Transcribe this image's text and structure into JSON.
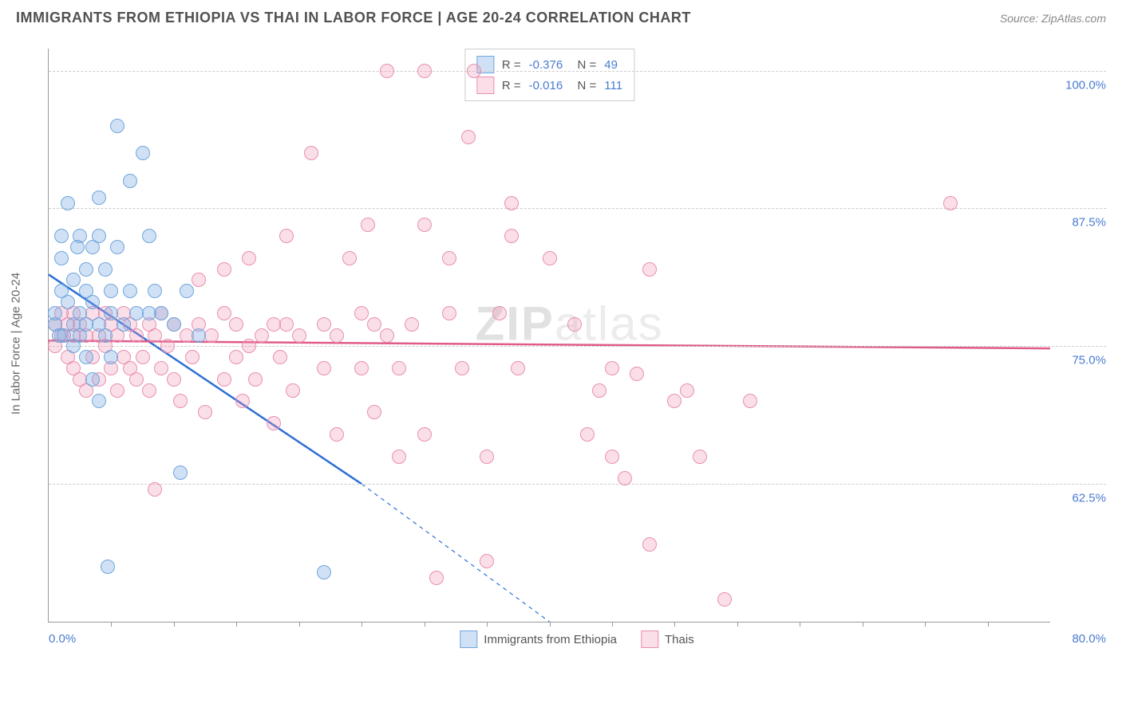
{
  "header": {
    "title": "IMMIGRANTS FROM ETHIOPIA VS THAI IN LABOR FORCE | AGE 20-24 CORRELATION CHART",
    "source": "Source: ZipAtlas.com"
  },
  "watermark": {
    "left": "ZIP",
    "right": "atlas"
  },
  "chart": {
    "type": "scatter",
    "ylabel": "In Labor Force | Age 20-24",
    "xlim": [
      0,
      80
    ],
    "ylim": [
      50,
      102
    ],
    "xticks": [
      0,
      80
    ],
    "xtick_labels": [
      "0.0%",
      "80.0%"
    ],
    "xtick_minor": [
      5,
      10,
      15,
      20,
      25,
      30,
      35,
      40,
      45,
      50,
      55,
      60,
      65,
      70,
      75
    ],
    "yticks": [
      62.5,
      75.0,
      87.5,
      100.0
    ],
    "ytick_labels": [
      "62.5%",
      "75.0%",
      "87.5%",
      "100.0%"
    ],
    "grid_color": "#cccccc",
    "background_color": "#ffffff",
    "axis_color": "#999999",
    "tick_label_color": "#4a7bd0",
    "label_fontsize": 15,
    "title_fontsize": 18,
    "marker_size": 18,
    "series": [
      {
        "name": "Immigrants from Ethiopia",
        "color_fill": "rgba(120,170,225,0.35)",
        "color_stroke": "#6fa6dd",
        "trend_color": "#2e6fd6",
        "trend_width": 2.5,
        "R": "-0.376",
        "N": "49",
        "trend": {
          "x1": 0,
          "y1": 81.5,
          "x2": 25,
          "y2": 62.5,
          "extend_dash_to_x": 40,
          "extend_dash_to_y": 50
        },
        "points": [
          [
            0.5,
            77
          ],
          [
            0.5,
            78
          ],
          [
            0.8,
            76
          ],
          [
            1,
            80
          ],
          [
            1,
            83
          ],
          [
            1,
            85
          ],
          [
            1.2,
            76
          ],
          [
            1.5,
            79
          ],
          [
            1.5,
            88
          ],
          [
            2,
            75
          ],
          [
            2,
            77
          ],
          [
            2,
            81
          ],
          [
            2.3,
            84
          ],
          [
            2.5,
            76
          ],
          [
            2.5,
            78
          ],
          [
            2.5,
            85
          ],
          [
            3,
            74
          ],
          [
            3,
            77
          ],
          [
            3,
            80
          ],
          [
            3,
            82
          ],
          [
            3.5,
            72
          ],
          [
            3.5,
            79
          ],
          [
            3.5,
            84
          ],
          [
            4,
            70
          ],
          [
            4,
            77
          ],
          [
            4,
            85
          ],
          [
            4,
            88.5
          ],
          [
            4.5,
            76
          ],
          [
            4.5,
            82
          ],
          [
            4.7,
            55
          ],
          [
            5,
            74
          ],
          [
            5,
            78
          ],
          [
            5,
            80
          ],
          [
            5.5,
            95
          ],
          [
            5.5,
            84
          ],
          [
            6,
            77
          ],
          [
            6.5,
            90
          ],
          [
            6.5,
            80
          ],
          [
            7,
            78
          ],
          [
            7.5,
            92.5
          ],
          [
            8,
            78
          ],
          [
            8,
            85
          ],
          [
            8.5,
            80
          ],
          [
            9,
            78
          ],
          [
            10,
            77
          ],
          [
            10.5,
            63.5
          ],
          [
            11,
            80
          ],
          [
            22,
            54.5
          ],
          [
            12,
            76
          ]
        ]
      },
      {
        "name": "Thais",
        "color_fill": "rgba(240,150,180,0.30)",
        "color_stroke": "#e98fb0",
        "trend_color": "#e05a8a",
        "trend_width": 2.5,
        "R": "-0.016",
        "N": "111",
        "trend": {
          "x1": 0,
          "y1": 75.5,
          "x2": 80,
          "y2": 74.8
        },
        "points": [
          [
            0.5,
            75
          ],
          [
            0.5,
            77
          ],
          [
            1,
            76
          ],
          [
            1,
            78
          ],
          [
            1.5,
            74
          ],
          [
            1.5,
            77
          ],
          [
            2,
            73
          ],
          [
            2,
            76
          ],
          [
            2,
            78
          ],
          [
            2.5,
            72
          ],
          [
            2.5,
            77
          ],
          [
            3,
            71
          ],
          [
            3,
            76
          ],
          [
            3.5,
            74
          ],
          [
            3.5,
            78
          ],
          [
            4,
            72
          ],
          [
            4,
            76
          ],
          [
            4.5,
            75
          ],
          [
            4.5,
            78
          ],
          [
            5,
            73
          ],
          [
            5,
            77
          ],
          [
            5.5,
            71
          ],
          [
            5.5,
            76
          ],
          [
            6,
            74
          ],
          [
            6,
            78
          ],
          [
            6.5,
            73
          ],
          [
            6.5,
            77
          ],
          [
            7,
            72
          ],
          [
            7,
            76
          ],
          [
            7.5,
            74
          ],
          [
            8,
            71
          ],
          [
            8,
            77
          ],
          [
            8.5,
            62
          ],
          [
            8.5,
            76
          ],
          [
            9,
            73
          ],
          [
            9,
            78
          ],
          [
            9.5,
            75
          ],
          [
            10,
            72
          ],
          [
            10,
            77
          ],
          [
            10.5,
            70
          ],
          [
            11,
            76
          ],
          [
            11.5,
            74
          ],
          [
            12,
            77
          ],
          [
            12,
            81
          ],
          [
            12.5,
            69
          ],
          [
            13,
            76
          ],
          [
            14,
            72
          ],
          [
            14,
            78
          ],
          [
            14,
            82
          ],
          [
            15,
            74
          ],
          [
            15,
            77
          ],
          [
            15.5,
            70
          ],
          [
            16,
            75
          ],
          [
            16,
            83
          ],
          [
            16.5,
            72
          ],
          [
            17,
            76
          ],
          [
            18,
            68
          ],
          [
            18,
            77
          ],
          [
            18.5,
            74
          ],
          [
            19,
            77
          ],
          [
            19,
            85
          ],
          [
            19.5,
            71
          ],
          [
            20,
            76
          ],
          [
            21,
            92.5
          ],
          [
            22,
            73
          ],
          [
            22,
            77
          ],
          [
            23,
            67
          ],
          [
            23,
            76
          ],
          [
            24,
            83
          ],
          [
            25,
            73
          ],
          [
            25,
            78
          ],
          [
            25.5,
            86
          ],
          [
            26,
            69
          ],
          [
            26,
            77
          ],
          [
            27,
            100
          ],
          [
            27,
            76
          ],
          [
            28,
            65
          ],
          [
            28,
            73
          ],
          [
            29,
            77
          ],
          [
            30,
            100
          ],
          [
            30,
            67
          ],
          [
            30,
            86
          ],
          [
            31,
            54
          ],
          [
            32,
            83
          ],
          [
            32,
            78
          ],
          [
            33,
            73
          ],
          [
            33.5,
            94
          ],
          [
            34,
            100
          ],
          [
            35,
            65
          ],
          [
            35,
            55.5
          ],
          [
            36,
            78
          ],
          [
            37,
            85
          ],
          [
            37,
            88
          ],
          [
            37.5,
            73
          ],
          [
            40,
            83
          ],
          [
            42,
            77
          ],
          [
            43,
            67
          ],
          [
            44,
            71
          ],
          [
            45,
            65
          ],
          [
            45,
            73
          ],
          [
            46,
            63
          ],
          [
            47,
            72.5
          ],
          [
            48,
            57
          ],
          [
            48,
            82
          ],
          [
            50,
            70
          ],
          [
            51,
            71
          ],
          [
            52,
            65
          ],
          [
            54,
            52
          ],
          [
            56,
            70
          ],
          [
            72,
            88
          ]
        ]
      }
    ]
  },
  "legend_bottom": {
    "items": [
      {
        "label": "Immigrants from Ethiopia",
        "fill": "rgba(120,170,225,0.35)",
        "stroke": "#6fa6dd"
      },
      {
        "label": "Thais",
        "fill": "rgba(240,150,180,0.30)",
        "stroke": "#e98fb0"
      }
    ]
  }
}
